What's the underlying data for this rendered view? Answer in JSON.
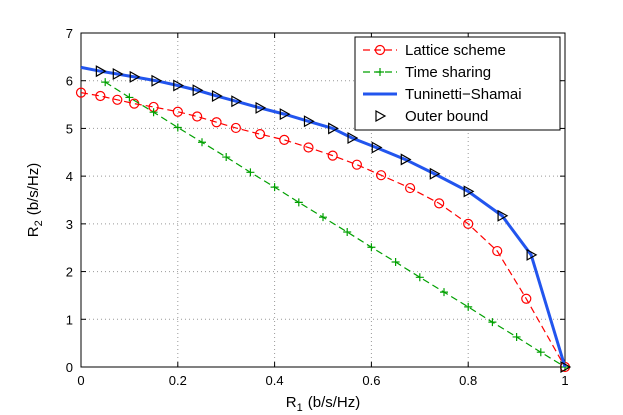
{
  "chart_data": {
    "type": "line",
    "xlabel": {
      "text": "R",
      "subscript": "1",
      "unit": "(b/s/Hz)"
    },
    "ylabel": {
      "text": "R",
      "subscript": "2",
      "unit": "(b/s/Hz)"
    },
    "xlim": [
      0,
      1
    ],
    "xticks": [
      0,
      0.2,
      0.4,
      0.6,
      0.8,
      1
    ],
    "ylim": [
      0,
      7
    ],
    "yticks": [
      0,
      1,
      2,
      3,
      4,
      5,
      6,
      7
    ],
    "grid": true,
    "legend": "northeast",
    "series": [
      {
        "name": "Lattice scheme",
        "color": "#ff0000",
        "line": "dashed",
        "marker": "circle",
        "x": [
          0,
          0.04,
          0.075,
          0.11,
          0.15,
          0.2,
          0.24,
          0.28,
          0.32,
          0.37,
          0.42,
          0.47,
          0.52,
          0.57,
          0.62,
          0.68,
          0.74,
          0.8,
          0.86,
          0.92,
          1
        ],
        "values": [
          5.75,
          5.68,
          5.6,
          5.52,
          5.45,
          5.35,
          5.25,
          5.13,
          5.01,
          4.88,
          4.76,
          4.6,
          4.43,
          4.24,
          4.02,
          3.75,
          3.43,
          3.0,
          2.43,
          1.43,
          0
        ]
      },
      {
        "name": "Time sharing",
        "color": "#00a000",
        "line": "dashed",
        "marker": "plus",
        "x": [
          0.05,
          0.1,
          0.15,
          0.2,
          0.25,
          0.3,
          0.35,
          0.4,
          0.45,
          0.5,
          0.55,
          0.6,
          0.65,
          0.7,
          0.75,
          0.8,
          0.85,
          0.9,
          0.95,
          1
        ],
        "values": [
          5.97,
          5.65,
          5.34,
          5.02,
          4.71,
          4.4,
          4.08,
          3.77,
          3.45,
          3.14,
          2.83,
          2.51,
          2.2,
          1.88,
          1.57,
          1.26,
          0.94,
          0.63,
          0.31,
          0
        ]
      },
      {
        "name": "Tuninetti−Shamai",
        "color": "#2255ee",
        "line": "solid",
        "marker": "none",
        "x": [
          0,
          0.04,
          0.075,
          0.11,
          0.155,
          0.2,
          0.24,
          0.28,
          0.32,
          0.37,
          0.42,
          0.47,
          0.52,
          0.56,
          0.61,
          0.67,
          0.73,
          0.8,
          0.87,
          0.93,
          1
        ],
        "values": [
          6.28,
          6.2,
          6.14,
          6.08,
          6.0,
          5.9,
          5.8,
          5.68,
          5.57,
          5.43,
          5.3,
          5.15,
          5.0,
          4.8,
          4.6,
          4.35,
          4.05,
          3.68,
          3.17,
          2.35,
          0
        ]
      },
      {
        "name": "Outer bound",
        "color": "#000000",
        "line": "none",
        "marker": "triangle-right",
        "x": [
          0.04,
          0.075,
          0.11,
          0.155,
          0.2,
          0.24,
          0.28,
          0.32,
          0.37,
          0.42,
          0.47,
          0.52,
          0.56,
          0.61,
          0.67,
          0.73,
          0.8,
          0.87,
          0.93,
          1
        ],
        "values": [
          6.2,
          6.14,
          6.08,
          6.0,
          5.9,
          5.8,
          5.68,
          5.57,
          5.43,
          5.3,
          5.15,
          5.0,
          4.8,
          4.6,
          4.35,
          4.05,
          3.68,
          3.17,
          2.35,
          0
        ]
      }
    ]
  }
}
